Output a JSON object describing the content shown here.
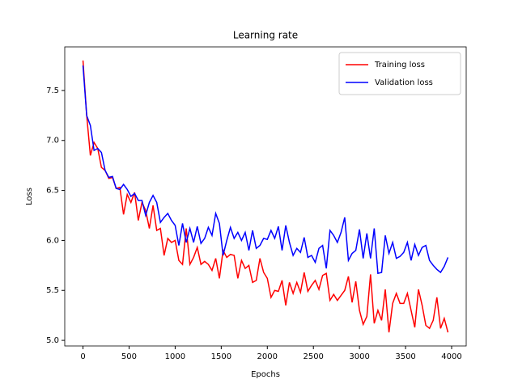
{
  "chart_data": {
    "type": "line",
    "title": "Learning rate",
    "xlabel": "Epochs",
    "ylabel": "Loss",
    "x": [
      0,
      40,
      80,
      120,
      160,
      200,
      240,
      280,
      320,
      360,
      400,
      440,
      480,
      520,
      560,
      600,
      640,
      680,
      720,
      760,
      800,
      840,
      880,
      920,
      960,
      1000,
      1040,
      1080,
      1120,
      1160,
      1200,
      1240,
      1280,
      1320,
      1360,
      1400,
      1440,
      1480,
      1520,
      1560,
      1600,
      1640,
      1680,
      1720,
      1760,
      1800,
      1840,
      1880,
      1920,
      1960,
      2000,
      2040,
      2080,
      2120,
      2160,
      2200,
      2240,
      2280,
      2320,
      2360,
      2400,
      2440,
      2480,
      2520,
      2560,
      2600,
      2640,
      2680,
      2720,
      2760,
      2800,
      2840,
      2880,
      2920,
      2960,
      3000,
      3040,
      3080,
      3120,
      3160,
      3200,
      3240,
      3280,
      3320,
      3360,
      3400,
      3440,
      3480,
      3520,
      3560,
      3600,
      3640,
      3680,
      3720,
      3760,
      3800,
      3840,
      3880,
      3920,
      3960
    ],
    "series": [
      {
        "name": "Training loss",
        "color": "#ff0000",
        "values": [
          7.8,
          7.25,
          6.85,
          6.98,
          6.92,
          6.73,
          6.7,
          6.62,
          6.63,
          6.52,
          6.53,
          6.26,
          6.46,
          6.38,
          6.48,
          6.2,
          6.38,
          6.3,
          6.12,
          6.35,
          6.1,
          6.12,
          5.85,
          6.02,
          5.98,
          6.0,
          5.8,
          5.76,
          6.12,
          5.76,
          5.83,
          5.93,
          5.76,
          5.79,
          5.76,
          5.7,
          5.82,
          5.62,
          5.9,
          5.83,
          5.86,
          5.85,
          5.62,
          5.8,
          5.72,
          5.75,
          5.58,
          5.6,
          5.82,
          5.68,
          5.62,
          5.43,
          5.5,
          5.49,
          5.6,
          5.35,
          5.58,
          5.47,
          5.58,
          5.48,
          5.68,
          5.49,
          5.55,
          5.6,
          5.51,
          5.65,
          5.67,
          5.4,
          5.46,
          5.4,
          5.45,
          5.5,
          5.64,
          5.38,
          5.59,
          5.3,
          5.16,
          5.24,
          5.66,
          5.17,
          5.3,
          5.2,
          5.51,
          5.08,
          5.37,
          5.47,
          5.37,
          5.37,
          5.47,
          5.3,
          5.13,
          5.51,
          5.35,
          5.15,
          5.12,
          5.2,
          5.43,
          5.12,
          5.22,
          5.08
        ]
      },
      {
        "name": "Validation loss",
        "color": "#0000ff",
        "values": [
          7.75,
          7.25,
          7.15,
          6.9,
          6.92,
          6.88,
          6.7,
          6.63,
          6.64,
          6.52,
          6.51,
          6.56,
          6.51,
          6.44,
          6.47,
          6.4,
          6.4,
          6.25,
          6.38,
          6.45,
          6.38,
          6.18,
          6.23,
          6.27,
          6.2,
          6.15,
          5.95,
          6.17,
          5.98,
          6.12,
          5.98,
          6.14,
          5.97,
          6.02,
          6.13,
          6.05,
          6.27,
          6.17,
          5.85,
          6.0,
          6.13,
          6.02,
          6.08,
          6.0,
          6.08,
          5.9,
          6.1,
          5.92,
          5.95,
          6.02,
          6.01,
          6.1,
          6.02,
          6.14,
          5.9,
          6.15,
          5.98,
          5.85,
          5.92,
          5.88,
          6.03,
          5.83,
          5.85,
          5.78,
          5.92,
          5.95,
          5.72,
          6.1,
          6.05,
          5.98,
          6.08,
          6.23,
          5.8,
          5.87,
          5.9,
          6.11,
          5.82,
          6.07,
          5.82,
          6.12,
          5.67,
          5.68,
          6.05,
          5.87,
          5.98,
          5.82,
          5.84,
          5.88,
          5.98,
          5.8,
          5.96,
          5.85,
          5.93,
          5.95,
          5.8,
          5.75,
          5.71,
          5.68,
          5.74,
          5.83
        ]
      }
    ],
    "xlim": [
      -198,
      4158
    ],
    "ylim": [
      4.944,
      7.936
    ],
    "xticks": [
      0,
      500,
      1000,
      1500,
      2000,
      2500,
      3000,
      3500,
      4000
    ],
    "yticks": [
      {
        "value": 5,
        "label": "5.0"
      },
      5.5,
      {
        "value": 6,
        "label": "6.0"
      },
      6.5,
      {
        "value": 7,
        "label": "7.0"
      },
      7.5
    ],
    "grid": false,
    "legend": "upper right"
  }
}
